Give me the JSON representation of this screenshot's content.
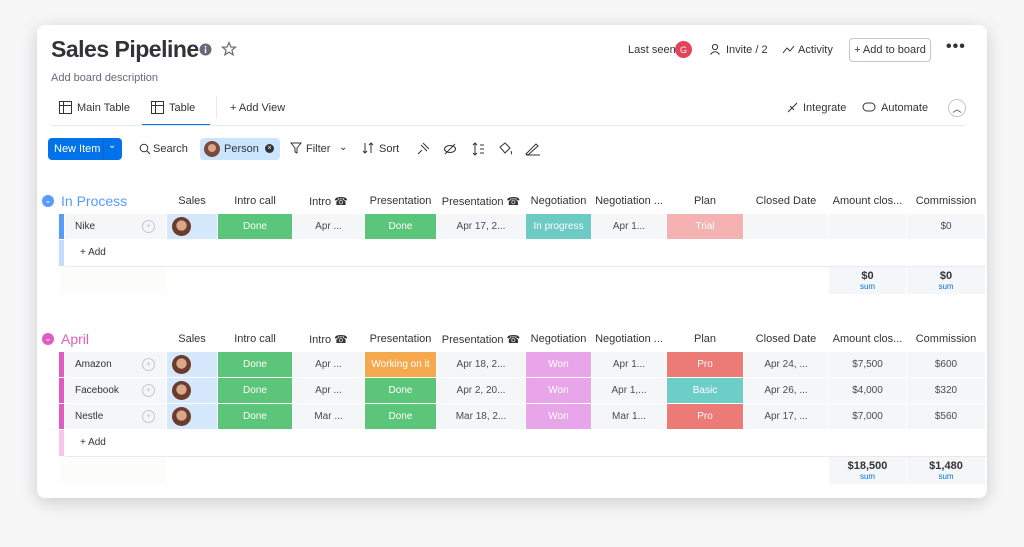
{
  "header": {
    "title": "Sales Pipeline",
    "description": "Add board description",
    "last_seen": "Last seen",
    "avatar": "G",
    "invite": "Invite / 2",
    "activity": "Activity",
    "add_to_board": "+ Add to board"
  },
  "views": {
    "tabs": [
      "Main Table",
      "Table"
    ],
    "add_view": "+ Add View",
    "integrate": "Integrate",
    "automate": "Automate"
  },
  "toolbar": {
    "new_item": "New Item",
    "search": "Search",
    "person": "Person",
    "filter": "Filter",
    "sort": "Sort"
  },
  "columns": [
    "Sales",
    "Intro call",
    "Intro ☎",
    "Presentation",
    "Presentation ☎",
    "Negotiation",
    "Negotiation ...",
    "Plan",
    "Closed Date",
    "Amount clos...",
    "Commission"
  ],
  "groups": [
    {
      "name": "In Process",
      "color": "#579bfc",
      "add": "+ Add",
      "rows": [
        {
          "name": "Nike",
          "cells": [
            {
              "text": "Done",
              "color": "#5bc57a"
            },
            {
              "text": "Apr ..."
            },
            {
              "text": "Done",
              "color": "#5bc57a"
            },
            {
              "text": "Apr 17, 2..."
            },
            {
              "text": "In progress",
              "color": "#6ccbc4"
            },
            {
              "text": "Apr 1..."
            },
            {
              "text": "Trial",
              "color": "#f4b2b2"
            },
            null,
            null,
            {
              "text": "$0"
            }
          ]
        }
      ],
      "sums": [
        {
          "value": "$0",
          "label": "sum"
        },
        {
          "value": "$0",
          "label": "sum"
        }
      ]
    },
    {
      "name": "April",
      "color": "#e05cc2",
      "add": "+ Add",
      "rows": [
        {
          "name": "Amazon",
          "cells": [
            {
              "text": "Done",
              "color": "#5bc57a"
            },
            {
              "text": "Apr ..."
            },
            {
              "text": "Working on it",
              "color": "#f5a94f"
            },
            {
              "text": "Apr 18, 2..."
            },
            {
              "text": "Won",
              "color": "#e8a5e9"
            },
            {
              "text": "Apr 1..."
            },
            {
              "text": "Pro",
              "color": "#ec7a76"
            },
            {
              "text": "Apr 24, ..."
            },
            {
              "text": "$7,500"
            },
            {
              "text": "$600"
            }
          ]
        },
        {
          "name": "Facebook",
          "cells": [
            {
              "text": "Done",
              "color": "#5bc57a"
            },
            {
              "text": "Apr ..."
            },
            {
              "text": "Done",
              "color": "#5bc57a"
            },
            {
              "text": "Apr 2, 20..."
            },
            {
              "text": "Won",
              "color": "#e8a5e9"
            },
            {
              "text": "Apr 1,..."
            },
            {
              "text": "Basic",
              "color": "#6dcdc7"
            },
            {
              "text": "Apr 26, ..."
            },
            {
              "text": "$4,000"
            },
            {
              "text": "$320"
            }
          ]
        },
        {
          "name": "Nestle",
          "cells": [
            {
              "text": "Done",
              "color": "#5bc57a"
            },
            {
              "text": "Mar ..."
            },
            {
              "text": "Done",
              "color": "#5bc57a"
            },
            {
              "text": "Mar 18, 2..."
            },
            {
              "text": "Won",
              "color": "#e8a5e9"
            },
            {
              "text": "Mar 1..."
            },
            {
              "text": "Pro",
              "color": "#ec7a76"
            },
            {
              "text": "Apr 17, ..."
            },
            {
              "text": "$7,000"
            },
            {
              "text": "$560"
            }
          ]
        }
      ],
      "sums": [
        {
          "value": "$18,500",
          "label": "sum"
        },
        {
          "value": "$1,480",
          "label": "sum"
        }
      ]
    }
  ]
}
